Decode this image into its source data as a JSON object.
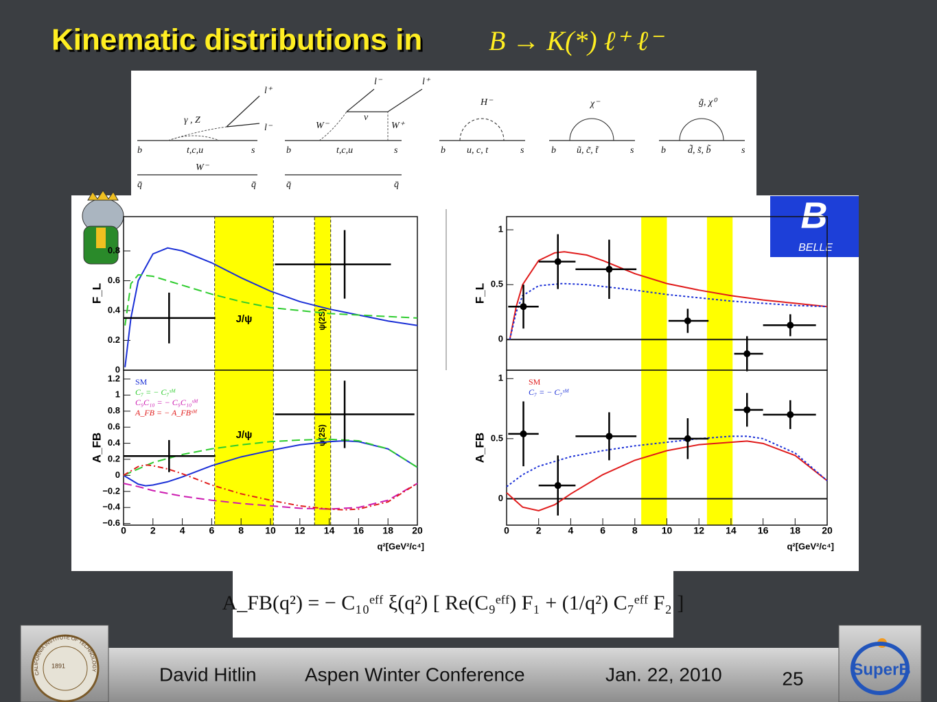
{
  "title": "Kinematic distributions in",
  "title_formula": "B → K(*) ℓ⁺ ℓ⁻",
  "diagrams": [
    {
      "labels": [
        "l⁺",
        "l⁻",
        "γ , Z",
        "b",
        "t,c,u",
        "s",
        "W⁻",
        "q̄",
        "q̄"
      ]
    },
    {
      "labels": [
        "l⁻",
        "l⁺",
        "W⁻",
        "ν",
        "W⁺",
        "b",
        "t,c,u",
        "s",
        "q̄",
        "q̄"
      ]
    },
    {
      "labels": [
        "H⁻",
        "b",
        "u, c, t",
        "s"
      ]
    },
    {
      "labels": [
        "χ⁻",
        "b",
        "ũ, c̃, t̃",
        "s"
      ]
    },
    {
      "labels": [
        "g̃, χ⁰",
        "b",
        "d̃, s̃, b̃",
        "s"
      ]
    }
  ],
  "formula": "A_FB(q²) = − C₁₀ᵉᶠᶠ ξ(q²) [ Re(C₉ᵉᶠᶠ) F₁ + (1/q²) C₇ᵉᶠᶠ F₂ ]",
  "logos": {
    "belle": "BELLE",
    "superb": "SuperB",
    "caltech": "CALIFORNIA INSTITUTE OF TECHNOLOGY",
    "caltech_year": "1891"
  },
  "footer": {
    "author": "David Hitlin",
    "conference": "Aspen Winter Conference",
    "date": "Jan. 22, 2010",
    "page": "25"
  },
  "chart_data": [
    {
      "type": "line",
      "y_label": "F_L",
      "xlim": [
        0,
        20
      ],
      "ylim": [
        0,
        1.03
      ],
      "yticks": [
        0,
        0.2,
        0.4,
        0.6,
        0.8
      ],
      "bands": [
        {
          "x": [
            6.2,
            10.2
          ],
          "label": "J/ψ"
        },
        {
          "x": [
            13,
            14.1
          ],
          "label": "ψ(2S)"
        }
      ],
      "series": [
        {
          "color": "#1a2fd6",
          "dash": "solid",
          "x": [
            0.1,
            0.5,
            1,
            2,
            3,
            4,
            6,
            8,
            10,
            12,
            14,
            16,
            18,
            20
          ],
          "values": [
            0.02,
            0.35,
            0.6,
            0.78,
            0.82,
            0.8,
            0.72,
            0.62,
            0.53,
            0.46,
            0.41,
            0.37,
            0.33,
            0.3
          ]
        },
        {
          "color": "#2ecc2e",
          "dash": "dashed",
          "x": [
            0.1,
            0.5,
            1,
            2,
            4,
            6,
            8,
            10,
            12,
            14,
            16,
            18,
            20
          ],
          "values": [
            0.3,
            0.58,
            0.64,
            0.63,
            0.57,
            0.51,
            0.46,
            0.42,
            0.4,
            0.38,
            0.37,
            0.36,
            0.35
          ]
        }
      ],
      "points": {
        "x": [
          3.1,
          15.05
        ],
        "x_low": [
          0,
          10.3
        ],
        "x_high": [
          6.25,
          18.2
        ],
        "y": [
          0.35,
          0.71
        ],
        "yerr": [
          0.17,
          0.23
        ]
      }
    },
    {
      "type": "line",
      "y_label": "A_FB",
      "x_label": "q²[GeV²/c⁴]",
      "legend": "upper left",
      "xlim": [
        0,
        20
      ],
      "xticks": [
        0,
        2,
        4,
        6,
        8,
        10,
        12,
        14,
        16,
        18,
        20
      ],
      "ylim": [
        -0.62,
        1.31
      ],
      "yticks": [
        {
          "value": -0.6,
          "label": "−0.6"
        },
        {
          "value": -0.4,
          "label": "−0.4"
        },
        {
          "value": -0.2,
          "label": "−0.2"
        },
        0,
        0.2,
        0.4,
        0.6,
        0.8,
        1,
        1.2
      ],
      "bands": [
        {
          "x": [
            6.2,
            10.2
          ],
          "label": "J/ψ"
        },
        {
          "x": [
            13,
            14.1
          ],
          "label": "ψ(2S)"
        }
      ],
      "series": [
        {
          "name": "SM",
          "color": "#1a2fd6",
          "dash": "solid",
          "x": [
            0,
            1,
            1.5,
            2,
            3,
            4,
            6,
            8,
            10,
            12,
            14,
            15,
            16,
            18,
            20
          ],
          "values": [
            0,
            -0.11,
            -0.13,
            -0.12,
            -0.08,
            -0.02,
            0.12,
            0.23,
            0.31,
            0.38,
            0.42,
            0.43,
            0.42,
            0.33,
            0.1
          ]
        },
        {
          "name": "C₇ = − C₇ˢᴹ",
          "color": "#2ecc2e",
          "dash": "dashed",
          "x": [
            0,
            1,
            2,
            3,
            4,
            6,
            8,
            10,
            12,
            14,
            16,
            18,
            20
          ],
          "values": [
            0,
            0.08,
            0.16,
            0.21,
            0.26,
            0.33,
            0.38,
            0.42,
            0.44,
            0.45,
            0.43,
            0.33,
            0.1
          ]
        },
        {
          "name": "C₉C₁₀ = − C₉C₁₀ˢᴹ",
          "color": "#cc1ab0",
          "dash": "dashed",
          "x": [
            0,
            1,
            2,
            4,
            6,
            8,
            10,
            12,
            14,
            16,
            18,
            20
          ],
          "values": [
            -0.1,
            -0.14,
            -0.19,
            -0.26,
            -0.31,
            -0.35,
            -0.38,
            -0.41,
            -0.42,
            -0.4,
            -0.31,
            -0.1
          ]
        },
        {
          "name": "A_FB = − A_FBˢᴹ",
          "color": "#e01b1b",
          "dash": "dashdot",
          "x": [
            0,
            1,
            1.5,
            2,
            3,
            4,
            6,
            8,
            10,
            12,
            14,
            15,
            16,
            18,
            20
          ],
          "values": [
            0,
            0.11,
            0.13,
            0.12,
            0.08,
            0.02,
            -0.12,
            -0.23,
            -0.31,
            -0.38,
            -0.42,
            -0.43,
            -0.42,
            -0.33,
            -0.1
          ]
        }
      ],
      "points": {
        "x": [
          3.1,
          15.05
        ],
        "x_low": [
          0,
          10.3
        ],
        "x_high": [
          6.25,
          19.8
        ],
        "y": [
          0.24,
          0.76
        ],
        "yerr": [
          0.2,
          0.42
        ]
      }
    },
    {
      "type": "line",
      "y_label": "F_L",
      "xlim": [
        0,
        20
      ],
      "ylim": [
        -0.28,
        1.12
      ],
      "yticks": [
        0,
        0.5,
        1
      ],
      "zero_line": true,
      "bands": [
        {
          "x": [
            8.4,
            10
          ]
        },
        {
          "x": [
            12.5,
            14.1
          ]
        }
      ],
      "series": [
        {
          "color": "#e01b1b",
          "dash": "solid",
          "x": [
            0.2,
            0.6,
            1,
            2,
            3,
            3.6,
            5,
            6,
            8,
            10,
            12,
            14,
            16,
            18,
            20
          ],
          "values": [
            0,
            0.3,
            0.5,
            0.72,
            0.79,
            0.8,
            0.77,
            0.72,
            0.6,
            0.51,
            0.45,
            0.4,
            0.36,
            0.33,
            0.3
          ]
        },
        {
          "color": "#1a2fd6",
          "dash": "dotted",
          "x": [
            0.2,
            0.6,
            1,
            2,
            3.5,
            5,
            8,
            10,
            12,
            14,
            16,
            18,
            20
          ],
          "values": [
            0,
            0.25,
            0.4,
            0.49,
            0.51,
            0.5,
            0.45,
            0.41,
            0.38,
            0.35,
            0.33,
            0.31,
            0.3
          ]
        }
      ],
      "points": {
        "x": [
          1.05,
          3.2,
          6.4,
          11.3,
          15,
          17.7
        ],
        "x_low": [
          0.1,
          2,
          4.3,
          10.1,
          14.2,
          16
        ],
        "x_high": [
          2,
          4.3,
          8.1,
          12.6,
          16,
          19.3
        ],
        "y": [
          0.3,
          0.71,
          0.64,
          0.17,
          -0.13,
          0.13
        ],
        "yerr": [
          0.2,
          0.25,
          0.27,
          0.11,
          0.16,
          0.1
        ]
      }
    },
    {
      "type": "line",
      "y_label": "A_FB",
      "x_label": "q²[GeV²/c⁴]",
      "legend": "upper left",
      "xlim": [
        0,
        20
      ],
      "xticks": [
        0,
        2,
        4,
        6,
        8,
        10,
        12,
        14,
        16,
        18,
        20
      ],
      "ylim": [
        -0.22,
        1.07
      ],
      "yticks": [
        0,
        0.5,
        1
      ],
      "zero_line": true,
      "bands": [
        {
          "x": [
            8.4,
            10
          ]
        },
        {
          "x": [
            12.5,
            14.1
          ]
        }
      ],
      "series": [
        {
          "name": "SM",
          "color": "#e01b1b",
          "dash": "solid",
          "x": [
            0,
            1,
            2,
            3,
            4,
            6,
            8,
            10,
            12,
            14,
            15,
            16,
            18,
            20
          ],
          "values": [
            0.05,
            -0.07,
            -0.1,
            -0.05,
            0.04,
            0.2,
            0.32,
            0.4,
            0.45,
            0.47,
            0.48,
            0.46,
            0.36,
            0.15
          ]
        },
        {
          "name": "C₇ = − C₇ˢᴹ",
          "color": "#1a2fd6",
          "dash": "dotted",
          "x": [
            0,
            1,
            2,
            4,
            6,
            8,
            10,
            12,
            14,
            15,
            16,
            18,
            20
          ],
          "values": [
            0.1,
            0.2,
            0.27,
            0.35,
            0.4,
            0.44,
            0.47,
            0.5,
            0.52,
            0.52,
            0.5,
            0.38,
            0.15
          ]
        }
      ],
      "points": {
        "x": [
          1.05,
          3.2,
          6.4,
          11.3,
          15,
          17.7
        ],
        "x_low": [
          0.1,
          2,
          4.3,
          10.1,
          14.2,
          16
        ],
        "x_high": [
          2,
          4.3,
          8.1,
          12.6,
          16,
          19.3
        ],
        "y": [
          0.54,
          0.11,
          0.52,
          0.5,
          0.74,
          0.7
        ],
        "yerr": [
          0.27,
          0.25,
          0.2,
          0.17,
          0.14,
          0.12
        ]
      }
    }
  ]
}
